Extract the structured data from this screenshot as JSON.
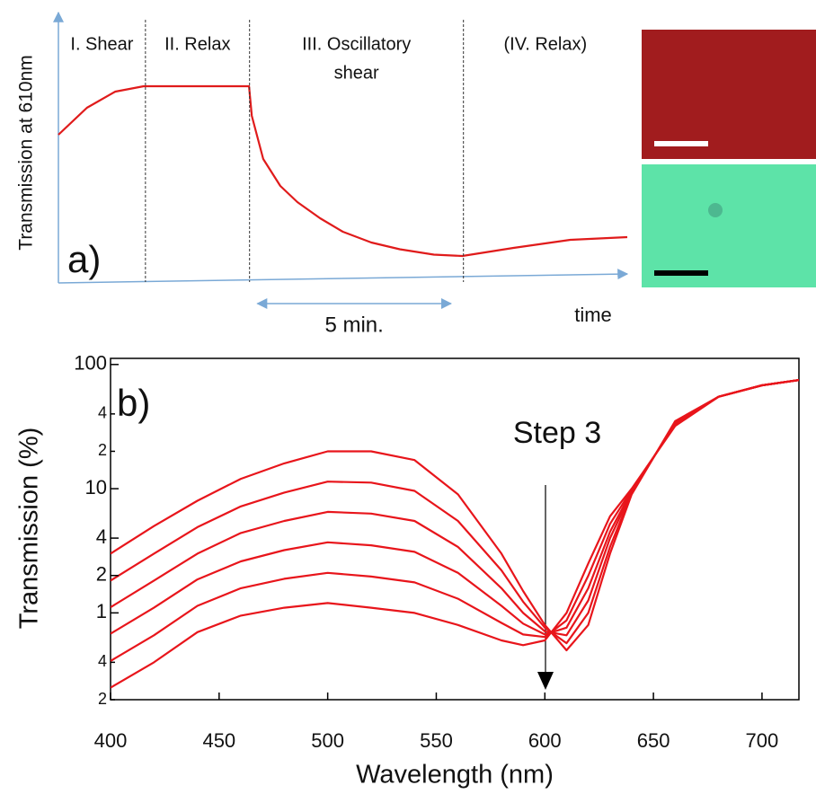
{
  "chart_data": [
    {
      "type": "line",
      "panel_label": "a)",
      "ylabel": "Transmission at 610nm",
      "xlabel": "time",
      "x": [
        0,
        5,
        10,
        15,
        33.5,
        34,
        36,
        39,
        42,
        46,
        50,
        55,
        60,
        66,
        71,
        80,
        90,
        100
      ],
      "values": [
        55,
        65,
        71,
        73,
        73,
        62,
        46,
        36,
        30,
        24,
        19,
        15,
        12.5,
        10.5,
        10,
        13,
        16,
        17
      ],
      "color": "#e01b1b",
      "xlim": [
        0,
        100
      ],
      "ylim": [
        0,
        100
      ],
      "phase_boundaries": [
        15.3,
        33.6,
        71.2
      ],
      "phase_labels": [
        [
          "I. Shear"
        ],
        [
          "II. Relax"
        ],
        [
          "III. Oscillatory",
          "shear"
        ],
        [
          "(IV. Relax)"
        ]
      ],
      "interval": [
        35,
        69
      ],
      "interval_label": "5 min."
    },
    {
      "type": "line",
      "panel_label": "b)",
      "ylabel": "Transmission (%)",
      "xlabel": "Wavelength (nm)",
      "annotation": "Step 3",
      "log_y": true,
      "x": [
        400,
        420,
        440,
        460,
        480,
        500,
        520,
        540,
        560,
        580,
        590,
        600,
        610,
        620,
        630,
        640,
        660,
        680,
        700,
        717
      ],
      "series": [
        {
          "color": "#e8151b",
          "values": [
            0.25,
            0.4,
            0.7,
            0.95,
            1.1,
            1.2,
            1.1,
            1.0,
            0.8,
            0.6,
            0.55,
            0.6,
            1.0,
            2.5,
            6,
            10,
            32,
            55,
            68,
            75
          ]
        },
        {
          "color": "#e8151b",
          "values": [
            0.41,
            0.66,
            1.14,
            1.58,
            1.88,
            2.1,
            1.96,
            1.76,
            1.3,
            0.83,
            0.67,
            0.64,
            0.87,
            1.99,
            5.2,
            9.8,
            32.6,
            55,
            68,
            75
          ]
        },
        {
          "color": "#e8151b",
          "values": [
            0.68,
            1.1,
            1.86,
            2.6,
            3.2,
            3.7,
            3.5,
            3.1,
            2.1,
            1.14,
            0.82,
            0.67,
            0.76,
            1.58,
            4.5,
            9.6,
            33.1,
            55,
            68,
            75
          ]
        },
        {
          "color": "#e8151b",
          "values": [
            1.11,
            1.82,
            3.0,
            4.4,
            5.5,
            6.5,
            6.3,
            5.5,
            3.4,
            1.58,
            1.0,
            0.71,
            0.66,
            1.26,
            4.0,
            9.4,
            33.8,
            55,
            68,
            75
          ]
        },
        {
          "color": "#e8151b",
          "values": [
            1.82,
            3.0,
            4.9,
            7.2,
            9.3,
            11.4,
            11.2,
            9.6,
            5.5,
            2.2,
            1.23,
            0.76,
            0.57,
            1.0,
            3.4,
            9.2,
            34.4,
            55,
            68,
            75
          ]
        },
        {
          "color": "#e8151b",
          "values": [
            3,
            5,
            8,
            12,
            16,
            20,
            20,
            17,
            9,
            3,
            1.5,
            0.8,
            0.5,
            0.8,
            3,
            9,
            35,
            55,
            68,
            75
          ]
        }
      ],
      "xlim": [
        400,
        717
      ],
      "xticks": [
        400,
        450,
        500,
        550,
        600,
        650,
        700
      ],
      "ylim": [
        0.2,
        112
      ],
      "yticks": [
        100,
        {
          "value": 40,
          "label": "4"
        },
        {
          "value": 20,
          "label": "2"
        },
        10,
        4,
        2,
        1,
        {
          "value": 0.4,
          "label": "4"
        },
        {
          "value": 0.2,
          "label": "2"
        }
      ]
    }
  ]
}
